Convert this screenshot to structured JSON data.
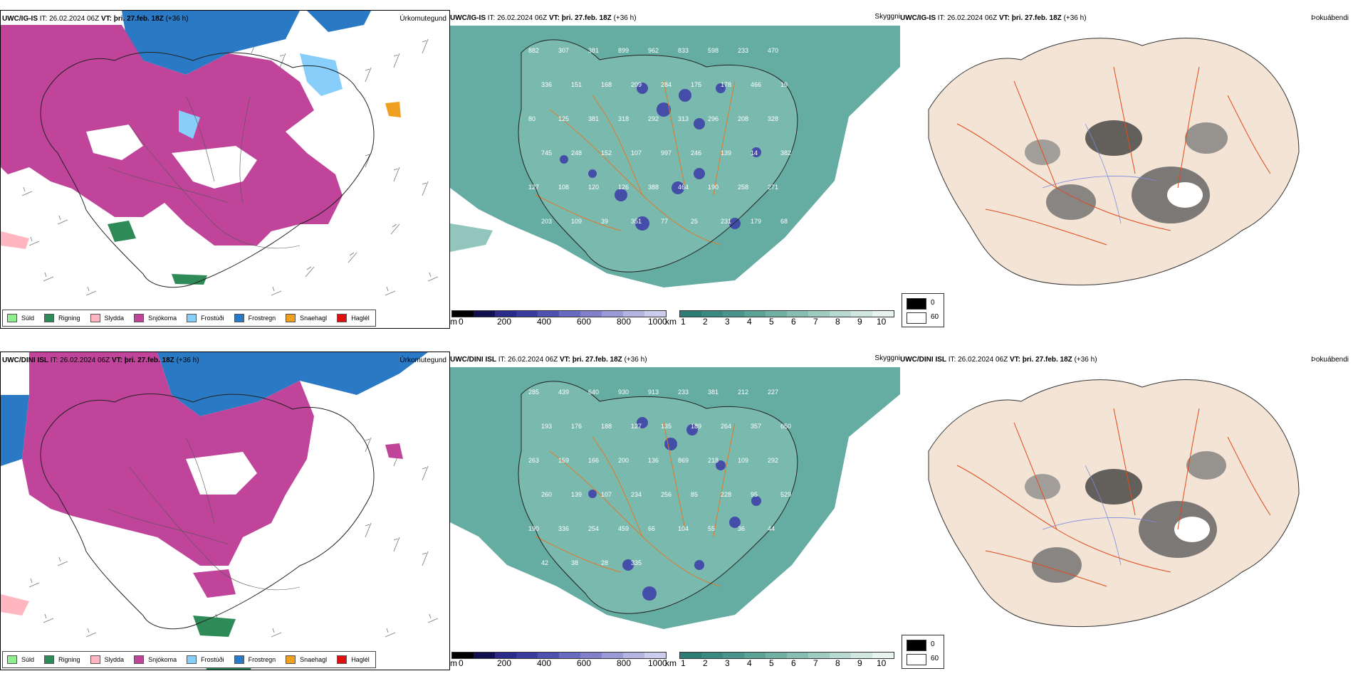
{
  "rows": [
    {
      "model": "UWC/IG-IS",
      "it_label": "IT:",
      "it_value": "26.02.2024 06Z",
      "vt_label": "VT:",
      "vt_value": "þri. 27.feb. 18Z",
      "lead": "(+36 h)",
      "panel_titles": [
        "Úrkomutegund",
        "Skyggni",
        "Þokuábendi"
      ],
      "visibility_labels": [
        "882",
        "307",
        "381",
        "899",
        "962",
        "833",
        "598",
        "233",
        "470",
        "336",
        "151",
        "168",
        "209",
        "284",
        "175",
        "178",
        "466",
        "19",
        "80",
        "125",
        "381",
        "318",
        "292",
        "313",
        "296",
        "208",
        "328",
        "745",
        "248",
        "152",
        "107",
        "997",
        "246",
        "139",
        "14",
        "382",
        "127",
        "108",
        "120",
        "126",
        "388",
        "464",
        "190",
        "258",
        "271",
        "203",
        "109",
        "39",
        "351",
        "77",
        "25",
        "231",
        "179",
        "68",
        "50",
        "90"
      ]
    },
    {
      "model": "UWC/DINI ISL",
      "it_label": "IT:",
      "it_value": "26.02.2024 06Z",
      "vt_label": "VT:",
      "vt_value": "þri. 27.feb. 18Z",
      "lead": "(+36 h)",
      "panel_titles": [
        "Úrkomutegund",
        "Skyggni",
        "Þokuábendi"
      ],
      "visibility_labels": [
        "285",
        "439",
        "640",
        "930",
        "913",
        "233",
        "381",
        "212",
        "227",
        "193",
        "176",
        "188",
        "127",
        "135",
        "189",
        "264",
        "357",
        "650",
        "263",
        "159",
        "166",
        "200",
        "136",
        "869",
        "218",
        "109",
        "292",
        "260",
        "139",
        "107",
        "234",
        "256",
        "85",
        "228",
        "95",
        "529",
        "190",
        "336",
        "254",
        "459",
        "66",
        "104",
        "55",
        "36",
        "44",
        "42",
        "38",
        "28",
        "335"
      ]
    }
  ],
  "precip_legend": [
    {
      "label": "Súld",
      "color": "#90ee90"
    },
    {
      "label": "Rigning",
      "color": "#2e8b57"
    },
    {
      "label": "Slydda",
      "color": "#ffb6c1"
    },
    {
      "label": "Snjókoma",
      "color": "#c0449a"
    },
    {
      "label": "Frostúði",
      "color": "#87cefa"
    },
    {
      "label": "Frostregn",
      "color": "#2a79c4"
    },
    {
      "label": "Snaehagl",
      "color": "#f0a020"
    },
    {
      "label": "Haglél",
      "color": "#e01010"
    }
  ],
  "elevation_bar": {
    "unit": "m",
    "ticks": [
      "0",
      "200",
      "400",
      "600",
      "800",
      "1000"
    ],
    "colors": [
      "#000000",
      "#101050",
      "#2a2a8a",
      "#3a3aa0",
      "#5050b0",
      "#6a6ac0",
      "#8080cc",
      "#9a9ad6",
      "#b4b4e0",
      "#ccccec"
    ]
  },
  "visibility_bar": {
    "unit": "km",
    "ticks": [
      "1",
      "2",
      "3",
      "4",
      "5",
      "6",
      "7",
      "8",
      "9",
      "10"
    ],
    "colors": [
      "#2e7d74",
      "#3a8a80",
      "#4a958b",
      "#5da296",
      "#72b0a4",
      "#88bdb2",
      "#a0cbc1",
      "#b8d9d1",
      "#d0e7e1",
      "#e8f3f0"
    ]
  },
  "fog_legend": [
    {
      "label": "0",
      "color": "#000000"
    },
    {
      "label": "60",
      "color": "#ffffff"
    }
  ]
}
